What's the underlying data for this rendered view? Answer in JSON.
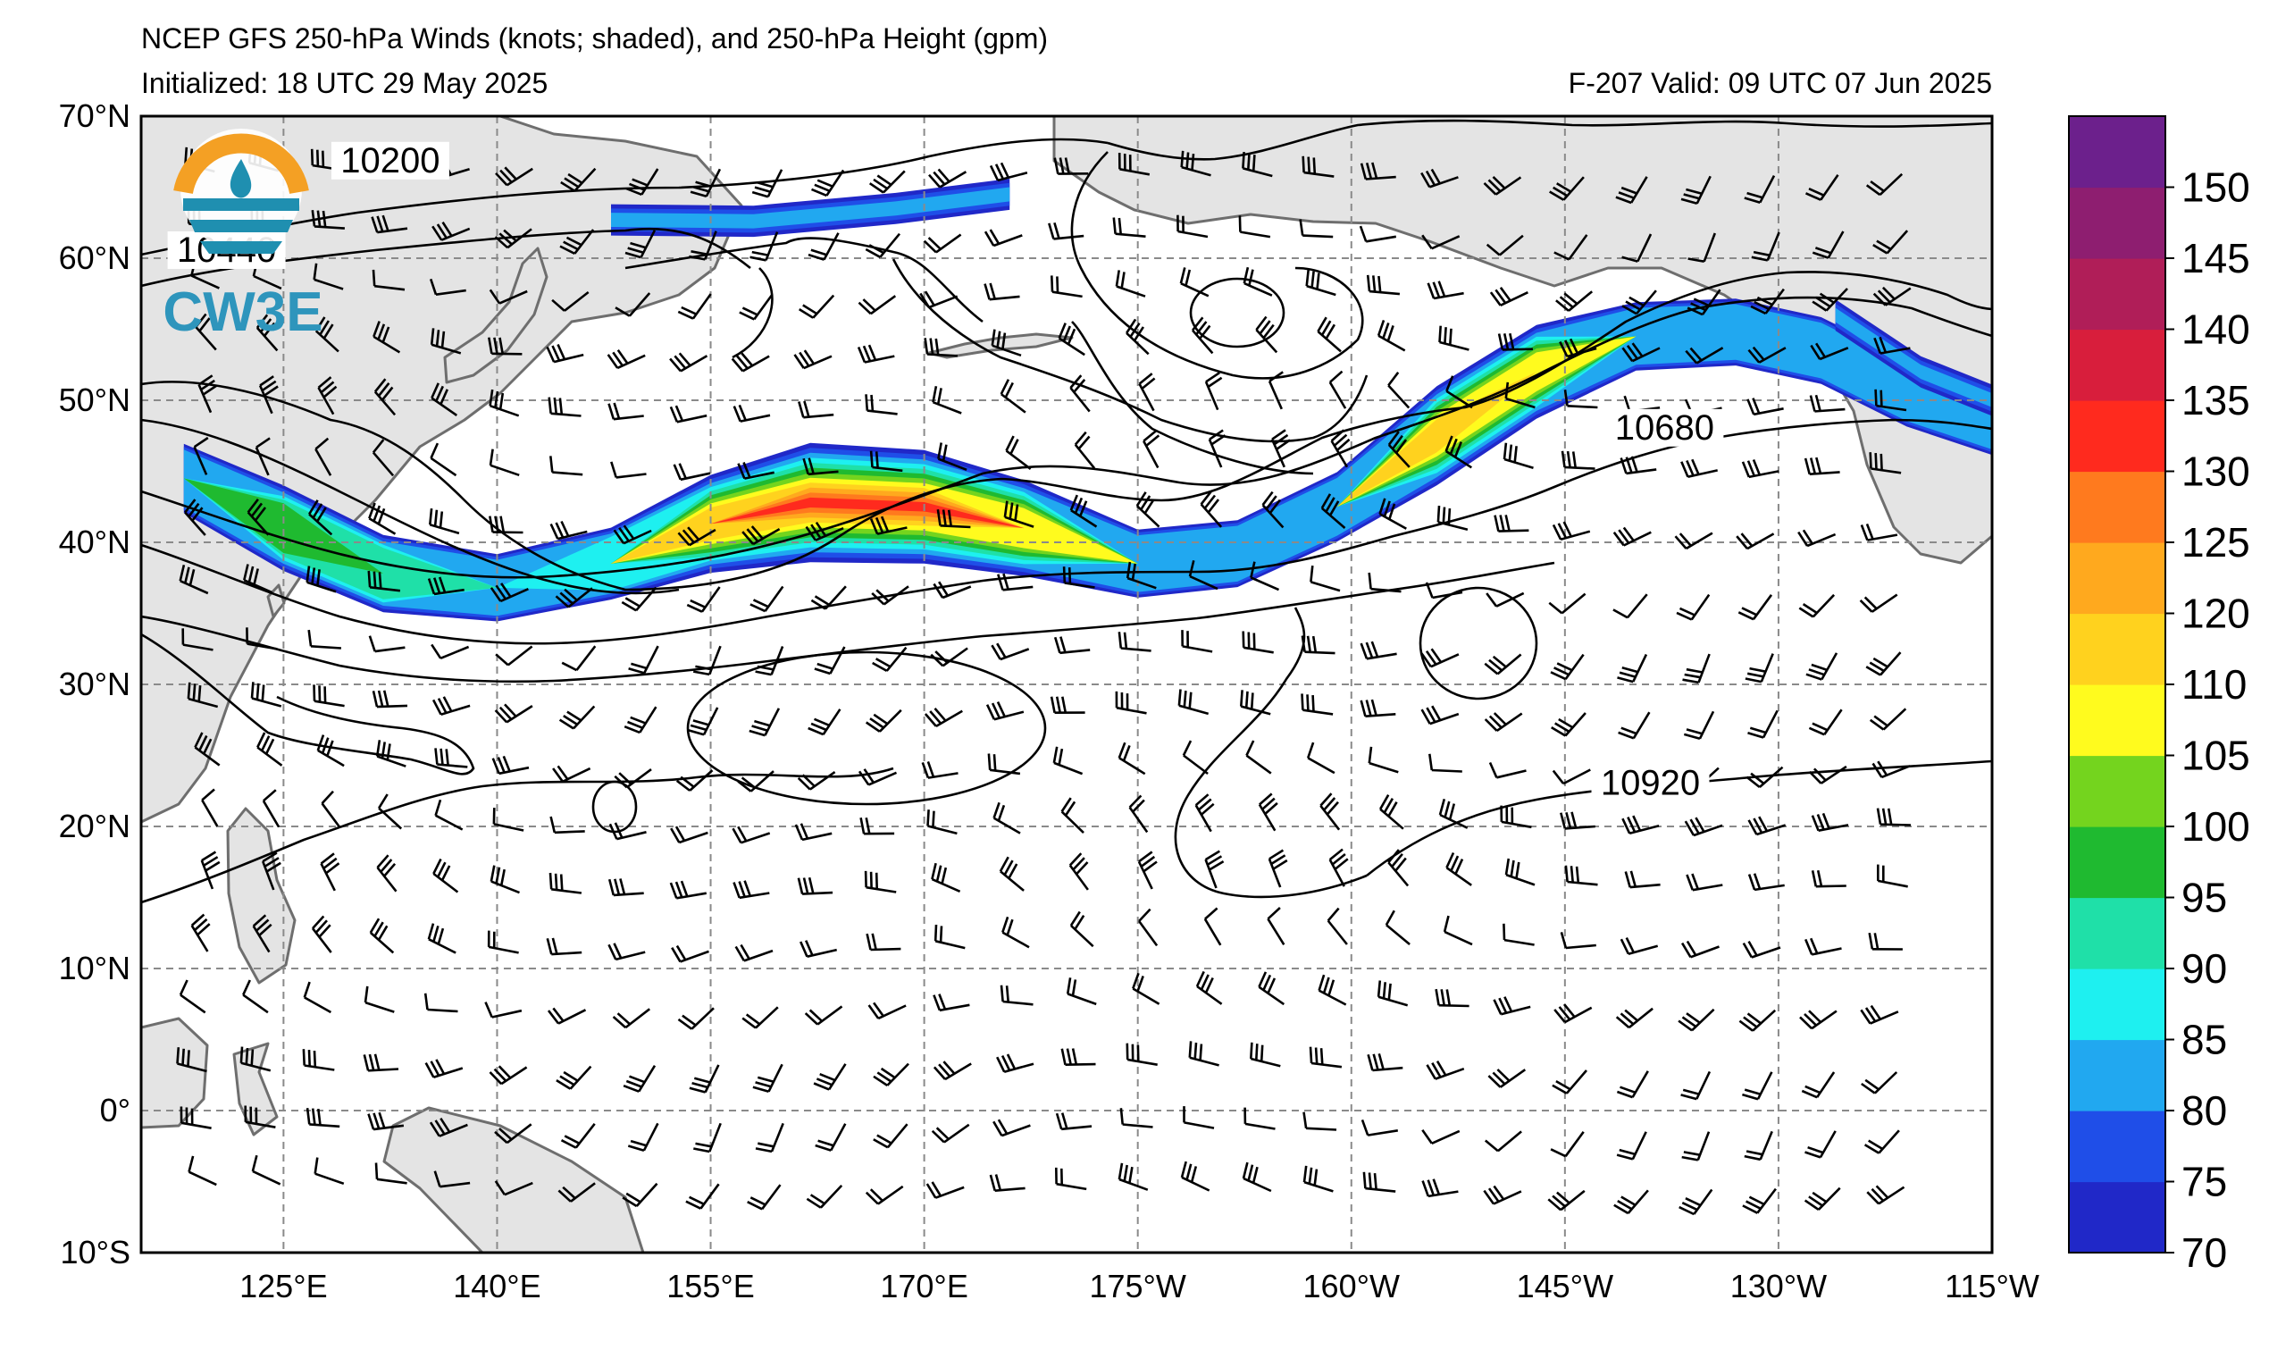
{
  "header": {
    "title": "NCEP GFS 250-hPa Winds (knots; shaded), and 250-hPa Height (gpm)",
    "initialized": "Initialized: 18 UTC 29 May 2025",
    "valid": "F-207  Valid: 09 UTC 07 Jun 2025"
  },
  "logo": {
    "text": "CW3E",
    "colors": {
      "ring": "#f4a024",
      "wave": "#1f8fb0"
    }
  },
  "map": {
    "lon_range": [
      115,
      245
    ],
    "lat_range": [
      -10,
      70
    ],
    "lat_labels": [
      {
        "lat": 70,
        "label": "70°N"
      },
      {
        "lat": 60,
        "label": "60°N"
      },
      {
        "lat": 50,
        "label": "50°N"
      },
      {
        "lat": 40,
        "label": "40°N"
      },
      {
        "lat": 30,
        "label": "30°N"
      },
      {
        "lat": 20,
        "label": "20°N"
      },
      {
        "lat": 10,
        "label": "10°N"
      },
      {
        "lat": 0,
        "label": "0°"
      },
      {
        "lat": -10,
        "label": "10°S"
      }
    ],
    "lon_labels": [
      {
        "lon": 125,
        "label": "125°E"
      },
      {
        "lon": 140,
        "label": "140°E"
      },
      {
        "lon": 155,
        "label": "155°E"
      },
      {
        "lon": 170,
        "label": "170°E"
      },
      {
        "lon": 185,
        "label": "175°W"
      },
      {
        "lon": 200,
        "label": "160°W"
      },
      {
        "lon": 215,
        "label": "145°W"
      },
      {
        "lon": 230,
        "label": "130°W"
      },
      {
        "lon": 245,
        "label": "115°W"
      }
    ],
    "grid": true,
    "colors": {
      "land": "#e4e4e4",
      "coast": "#6e6e6e",
      "grid": "#8a8a8a"
    }
  },
  "contours": {
    "units": "gpm",
    "labels": [
      {
        "text": "10200",
        "lon": 132.5,
        "lat": 66.3
      },
      {
        "text": "10440",
        "lon": 121,
        "lat": 60
      },
      {
        "text": "10680",
        "lon": 222,
        "lat": 47.5
      },
      {
        "text": "10920",
        "lon": 221,
        "lat": 22.5
      }
    ]
  },
  "jet": {
    "units": "knots",
    "core_max_kt": 135
  },
  "colorbar": {
    "levels": [
      70,
      75,
      80,
      85,
      90,
      95,
      100,
      105,
      110,
      120,
      125,
      130,
      135,
      140,
      145,
      150,
      155
    ],
    "colors": [
      "#2028c8",
      "#1f4ee8",
      "#21a8f0",
      "#1ef0f0",
      "#1fe0a8",
      "#1fba30",
      "#74d41e",
      "#fffb1e",
      "#ffd21e",
      "#ffa91e",
      "#ff7a1e",
      "#ff2a1e",
      "#d81e3c",
      "#b01e58",
      "#8e1e70",
      "#6c208c"
    ],
    "labels": [
      "70",
      "75",
      "80",
      "85",
      "90",
      "95",
      "100",
      "105",
      "110",
      "120",
      "125",
      "130",
      "135",
      "140",
      "145",
      "150"
    ]
  }
}
